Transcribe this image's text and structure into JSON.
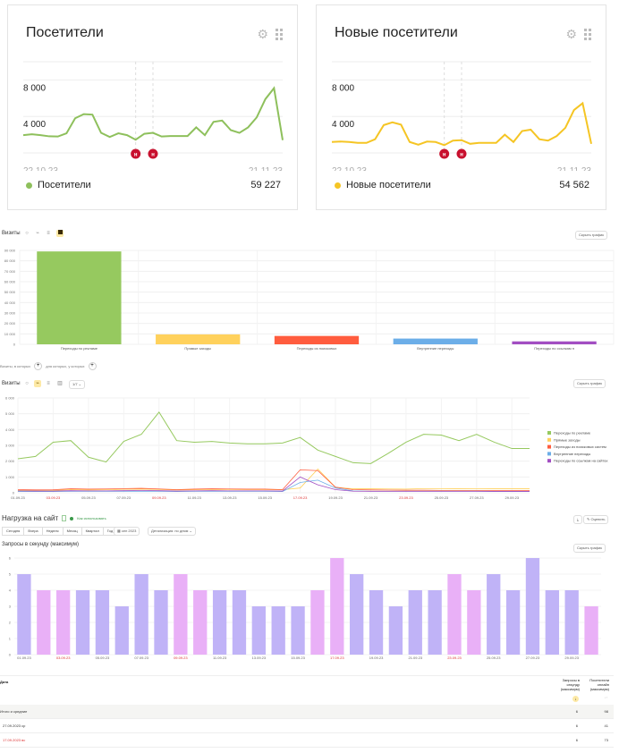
{
  "widgets": [
    {
      "title": "Посетители",
      "color": "#8ec05c",
      "y_ticks": [
        "8 000",
        "4 000"
      ],
      "x_start": "22.10.23",
      "x_end": "21.11.23",
      "legend_label": "Посетители",
      "total": "59 227",
      "annotation_marker": "н",
      "series": [
        1950,
        2050,
        1950,
        1820,
        1800,
        2150,
        3800,
        4250,
        4200,
        2200,
        1750,
        2150,
        1950,
        1450,
        2100,
        2200,
        1800,
        1850,
        1850,
        1850,
        2800,
        1950,
        3400,
        3550,
        2500,
        2200,
        2800,
        3900,
        5900,
        7100,
        1400
      ]
    },
    {
      "title": "Новые посетители",
      "color": "#f5c524",
      "y_ticks": [
        "8 000",
        "4 000"
      ],
      "x_start": "22.10.23",
      "x_end": "21.11.23",
      "legend_label": "Новые посетители",
      "total": "54 562",
      "annotation_marker": "н",
      "series": [
        1200,
        1250,
        1200,
        1100,
        1100,
        1500,
        3050,
        3350,
        3100,
        1200,
        900,
        1250,
        1200,
        850,
        1350,
        1400,
        1000,
        1100,
        1100,
        1100,
        2000,
        1200,
        2400,
        2550,
        1500,
        1350,
        1850,
        2750,
        4700,
        5450,
        1000
      ]
    }
  ],
  "visits_bar": {
    "title": "Визиты",
    "hide_button": "Скрыть график",
    "view_icons": [
      "pie-chart-icon",
      "line-chart-icon",
      "stacked-chart-icon",
      "bar-chart-icon"
    ],
    "grouping_label_1": "Визиты, в которых",
    "grouping_label_2": "для которых, у которых",
    "chart_data": {
      "type": "bar",
      "title": "Визиты",
      "categories": [
        "Переходы по рекламе",
        "Прямые заходы",
        "Переходы из поисковых",
        "Внутренние переходы",
        "Переходы по ссылкам н"
      ],
      "values": [
        89000,
        9500,
        8000,
        5500,
        2800
      ],
      "colors": [
        "#96c95f",
        "#ffd15c",
        "#ff5c3e",
        "#6caee8",
        "#a24ec2"
      ],
      "ylim": [
        0,
        90000
      ],
      "y_ticks": [
        "0",
        "10 000",
        "20 000",
        "30 000",
        "40 000",
        "50 000",
        "60 000",
        "70 000",
        "80 000",
        "90 000"
      ],
      "xlabel": "",
      "ylabel": "",
      "grid": true
    }
  },
  "visits_line": {
    "title": "Визиты",
    "hide_button": "Скрыть график",
    "period_select": "1/7",
    "chart_data": {
      "type": "line",
      "title": "Визиты",
      "x": [
        "01.09.23",
        "02.09.23",
        "03.09.23",
        "04.09.23",
        "05.09.23",
        "06.09.23",
        "07.09.23",
        "08.09.23",
        "09.09.23",
        "10.09.23",
        "11.09.23",
        "12.09.23",
        "13.09.23",
        "14.09.23",
        "15.09.23",
        "16.09.23",
        "17.09.23",
        "18.09.23",
        "19.09.23",
        "20.09.23",
        "21.09.23",
        "22.09.23",
        "23.09.23",
        "24.09.23",
        "25.09.23",
        "26.09.23",
        "27.09.23",
        "28.09.23",
        "29.09.23",
        "30.09.23"
      ],
      "x_tick_labels": [
        "01.09.23",
        "03.09.23",
        "05.09.23",
        "07.09.23",
        "09.09.23",
        "11.09.23",
        "13.09.23",
        "15.09.23",
        "17.09.23",
        "19.09.23",
        "21.09.23",
        "23.09.23",
        "25.09.23",
        "27.09.23",
        "29.09.23"
      ],
      "weekend_ticks": [
        "03.09.23",
        "09.09.23",
        "17.09.23",
        "23.09.23"
      ],
      "y_ticks": [
        "0",
        "1 000",
        "2 000",
        "3 000",
        "4 000",
        "5 000",
        "6 000"
      ],
      "ylim": [
        0,
        6000
      ],
      "legend_position": "right",
      "series": [
        {
          "name": "Переходы по рекламе",
          "color": "#96c95f",
          "values": [
            2150,
            2300,
            3200,
            3300,
            2250,
            1950,
            3250,
            3700,
            5100,
            3300,
            3200,
            3250,
            3150,
            3100,
            3100,
            3150,
            3500,
            2700,
            2300,
            1900,
            1850,
            2500,
            3200,
            3700,
            3650,
            3300,
            3700,
            3200,
            2800,
            2800
          ]
        },
        {
          "name": "Прямые заходы",
          "color": "#ffd15c",
          "values": [
            150,
            160,
            150,
            200,
            180,
            190,
            220,
            230,
            210,
            180,
            190,
            200,
            210,
            200,
            200,
            190,
            300,
            1500,
            350,
            250,
            250,
            240,
            230,
            260,
            260,
            250,
            260,
            250,
            250,
            250
          ]
        },
        {
          "name": "Переходы из поисковых систем",
          "color": "#ff5c3e",
          "values": [
            200,
            180,
            190,
            250,
            230,
            240,
            260,
            280,
            240,
            200,
            230,
            250,
            240,
            230,
            230,
            200,
            1450,
            1400,
            350,
            200,
            180,
            170,
            160,
            160,
            150,
            150,
            150,
            140,
            140,
            140
          ]
        },
        {
          "name": "Внутренние переходы",
          "color": "#6caee8",
          "values": [
            80,
            80,
            80,
            90,
            90,
            90,
            90,
            90,
            90,
            80,
            90,
            90,
            90,
            90,
            90,
            80,
            650,
            800,
            300,
            120,
            100,
            100,
            100,
            100,
            100,
            100,
            100,
            90,
            90,
            90
          ]
        },
        {
          "name": "Переходы по ссылкам на сайтах",
          "color": "#a24ec2",
          "values": [
            120,
            110,
            110,
            130,
            120,
            120,
            130,
            140,
            130,
            110,
            120,
            130,
            120,
            120,
            120,
            110,
            1000,
            500,
            200,
            100,
            90,
            90,
            90,
            90,
            90,
            90,
            90,
            80,
            80,
            80
          ]
        }
      ]
    }
  },
  "load": {
    "title": "Нагрузка на сайт",
    "status": "Как использовать",
    "periods": [
      "Сегодня",
      "Вчера",
      "Неделя",
      "Месяц",
      "Квартал",
      "Год"
    ],
    "date_range": "сен 2023",
    "detail_select": "Детализация: по дням",
    "export_button": "Экспорт",
    "subscribe_button": "Оценить",
    "chart_title": "Запросы в секунду (максимум)",
    "hide_button": "Скрыть график",
    "chart_data": {
      "type": "bar",
      "title": "Запросы в секунду (максимум)",
      "x": [
        "01.09.23",
        "02.09.23",
        "03.09.23",
        "04.09.23",
        "05.09.23",
        "06.09.23",
        "07.09.23",
        "08.09.23",
        "09.09.23",
        "10.09.23",
        "11.09.23",
        "12.09.23",
        "13.09.23",
        "14.09.23",
        "15.09.23",
        "16.09.23",
        "17.09.23",
        "18.09.23",
        "19.09.23",
        "20.09.23",
        "21.09.23",
        "22.09.23",
        "23.09.23",
        "24.09.23",
        "25.09.23",
        "26.09.23",
        "27.09.23",
        "28.09.23",
        "29.09.23",
        "30.09.23"
      ],
      "values": [
        5,
        4,
        4,
        4,
        4,
        3,
        5,
        4,
        5,
        4,
        4,
        4,
        3,
        3,
        3,
        4,
        6,
        5,
        4,
        3,
        4,
        4,
        5,
        4,
        5,
        4,
        6,
        4,
        4,
        3
      ],
      "weekend": [
        false,
        true,
        true,
        false,
        false,
        false,
        false,
        false,
        true,
        true,
        false,
        false,
        false,
        false,
        false,
        true,
        true,
        false,
        false,
        false,
        false,
        false,
        true,
        true,
        false,
        false,
        false,
        false,
        false,
        true
      ],
      "x_tick_labels": [
        "01.09.23",
        "03.09.23",
        "05.09.23",
        "07.09.23",
        "09.09.23",
        "11.09.23",
        "13.09.23",
        "15.09.23",
        "17.09.23",
        "19.09.23",
        "21.09.23",
        "23.09.23",
        "25.09.23",
        "27.09.23",
        "29.09.23"
      ],
      "y_ticks": [
        "0",
        "1",
        "2",
        "3",
        "4",
        "5",
        "6"
      ],
      "ylim": [
        0,
        6
      ],
      "colors": {
        "weekday": "#c0b3f7",
        "weekend": "#e9b0f7"
      }
    }
  },
  "table": {
    "col_date": "Дата",
    "col_rps": "Запросы в секунду (максимум)",
    "col_online": "Посетители онлайн (максимум)",
    "rps_total_hint": "↓",
    "online_total_hint": "↓↑",
    "rows": [
      {
        "label": "Итого и средние",
        "rps": "6",
        "online": "98",
        "type": "total"
      },
      {
        "label": "27.09.2023 ср",
        "rps": "6",
        "online": "41",
        "type": "weekday"
      },
      {
        "label": "17.09.2023 вс",
        "rps": "6",
        "online": "73",
        "type": "weekend"
      }
    ]
  }
}
